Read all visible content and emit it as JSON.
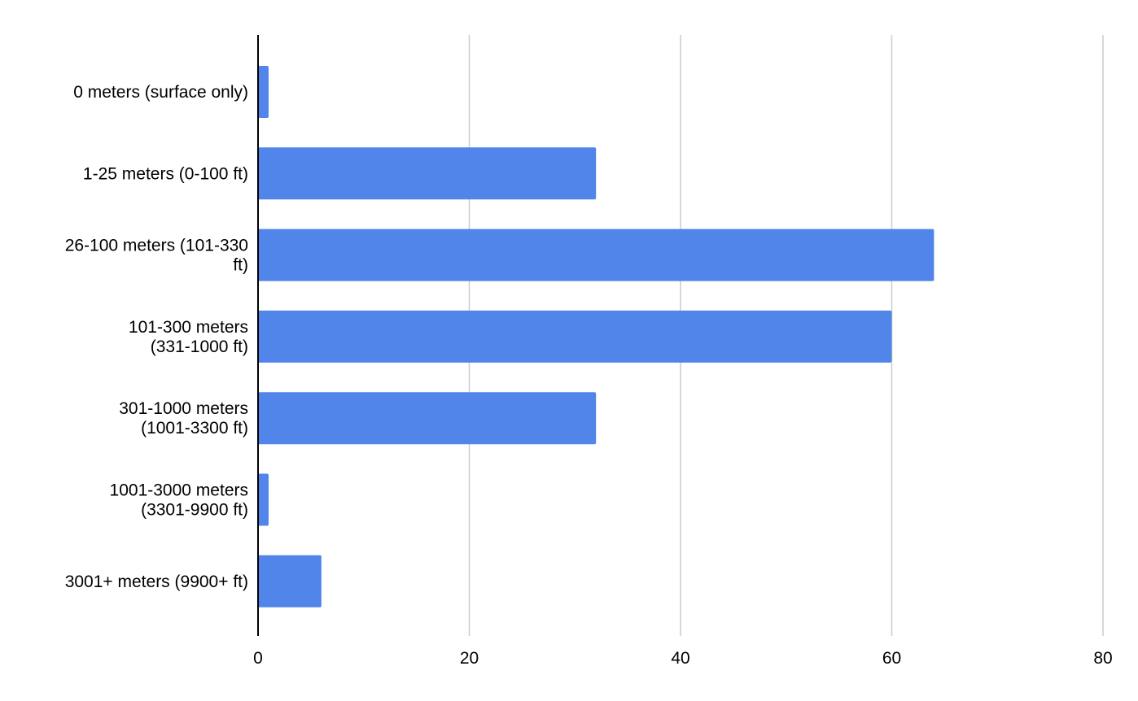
{
  "chart_data": {
    "type": "bar",
    "orientation": "horizontal",
    "title": "",
    "xlabel": "",
    "ylabel": "",
    "categories": [
      [
        "0 meters (surface only)"
      ],
      [
        "1-25 meters (0-100 ft)"
      ],
      [
        "26-100 meters (101-330",
        "ft)"
      ],
      [
        "101-300 meters",
        "(331-1000 ft)"
      ],
      [
        "301-1000 meters",
        "(1001-3300 ft)"
      ],
      [
        "1001-3000 meters",
        "(3301-9900 ft)"
      ],
      [
        "3001+ meters (9900+ ft)"
      ]
    ],
    "values": [
      1,
      32,
      64,
      60,
      32,
      1,
      6
    ],
    "xlim": [
      0,
      80
    ],
    "xticks": [
      0,
      20,
      40,
      60,
      80
    ],
    "grid": true,
    "legend": "none",
    "bar_color": "#5185ea",
    "grid_color": "#cccccc",
    "axis_color": "#000000"
  }
}
